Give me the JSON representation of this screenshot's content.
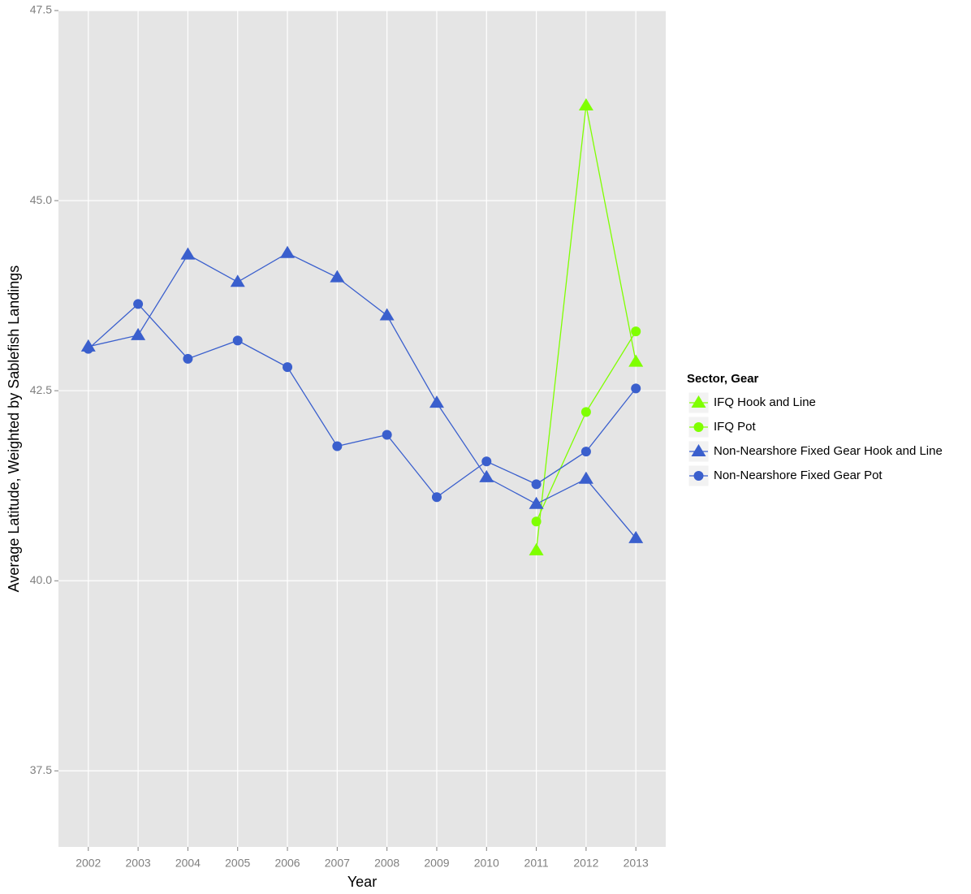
{
  "chart_data": {
    "type": "line",
    "x_label": "Year",
    "y_label": "Average Latitude, Weighted by Sablefish Landings",
    "categories": [
      "2002",
      "2003",
      "2004",
      "2005",
      "2006",
      "2007",
      "2008",
      "2009",
      "2010",
      "2011",
      "2012",
      "2013"
    ],
    "ylim": [
      36.5,
      47.5
    ],
    "yticks": [
      {
        "value": 37.5,
        "label": "37.5"
      },
      {
        "value": 40,
        "label": "40.0"
      },
      {
        "value": 42.5,
        "label": "42.5"
      },
      {
        "value": 45,
        "label": "45.0"
      },
      {
        "value": 47.5,
        "label": "47.5"
      }
    ],
    "grid": true,
    "legend_title": "Sector, Gear",
    "legend_position": "right",
    "series": [
      {
        "name": "IFQ Hook and Line",
        "color": "#7fff00",
        "shape": "triangle",
        "values": [
          null,
          null,
          null,
          null,
          null,
          null,
          null,
          null,
          null,
          40.4,
          46.25,
          42.88
        ]
      },
      {
        "name": "IFQ Pot",
        "color": "#7fff00",
        "shape": "circle",
        "values": [
          null,
          null,
          null,
          null,
          null,
          null,
          null,
          null,
          null,
          40.78,
          42.22,
          43.28
        ]
      },
      {
        "name": "Non-Nearshore Fixed Gear Hook and Line",
        "color": "#3a5fcd",
        "shape": "triangle",
        "values": [
          43.08,
          43.23,
          44.29,
          43.93,
          44.31,
          43.99,
          43.49,
          42.34,
          41.36,
          41.01,
          41.34,
          40.56
        ]
      },
      {
        "name": "Non-Nearshore Fixed Gear Pot",
        "color": "#3a5fcd",
        "shape": "circle",
        "values": [
          43.05,
          43.64,
          42.92,
          43.16,
          42.81,
          41.77,
          41.92,
          41.1,
          41.57,
          41.27,
          41.7,
          42.53
        ]
      }
    ]
  }
}
